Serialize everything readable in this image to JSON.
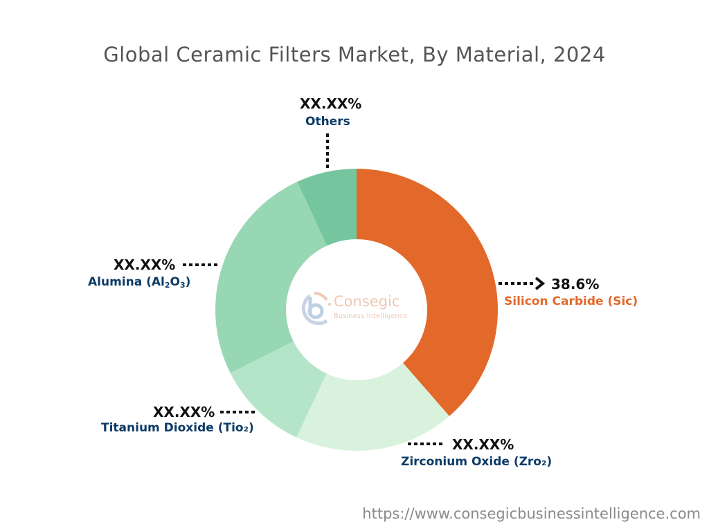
{
  "title": "Global Ceramic Filters Market, By Material, 2024",
  "footer_url": "https://www.consegicbusinessintelligence.com",
  "watermark": {
    "brand": "Consegic",
    "tagline": "Business Intelligence",
    "icon": "consegic-logo-icon"
  },
  "labels": {
    "silicon": {
      "value": "38.6%",
      "name": "Silicon Carbide (Sic)"
    },
    "zirconium": {
      "value": "XX.XX%",
      "name": "Zirconium Oxide (Zro₂)"
    },
    "titanium": {
      "value": "XX.XX%",
      "name": "Titanium Dioxide (Tio₂)"
    },
    "alumina": {
      "value": "XX.XX%",
      "name": "Alumina (Al₂O₃)"
    },
    "others": {
      "value": "XX.XX%",
      "name": "Others"
    }
  },
  "colors": {
    "silicon": "#e2692a",
    "zirconium": "#d9f2de",
    "titanium": "#b5e5c9",
    "alumina": "#98d7b4",
    "others": "#75c69e",
    "label_navy": "#0d3b66",
    "label_orange": "#e2692a"
  },
  "chart_data": {
    "type": "pie",
    "subtype": "donut",
    "title": "Global Ceramic Filters Market, By Material, 2024",
    "categories": [
      "Silicon Carbide (Sic)",
      "Zirconium Oxide (Zro2)",
      "Titanium Dioxide (Tio2)",
      "Alumina (Al2O3)",
      "Others"
    ],
    "values": [
      38.6,
      18.4,
      10.6,
      25.5,
      6.9
    ],
    "displayed_labels": [
      "38.6%",
      "XX.XX%",
      "XX.XX%",
      "XX.XX%",
      "XX.XX%"
    ],
    "value_note": "Only Silicon Carbide value (38.6%) is labeled; others are masked as XX.XX% and estimated from slice angles",
    "start_angle": "12 o'clock, clockwise",
    "legend": "none (callout labels)"
  }
}
